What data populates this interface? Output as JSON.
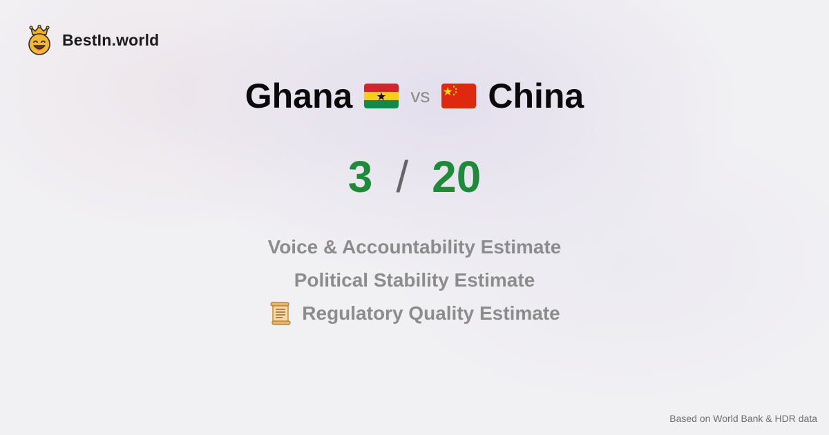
{
  "brand": {
    "logo_icon": "crowned-smiley-icon",
    "name": "BestIn.world"
  },
  "comparison": {
    "country_a": {
      "name": "Ghana",
      "flag_icon": "ghana-flag-icon"
    },
    "vs_label": "vs",
    "country_b": {
      "name": "China",
      "flag_icon": "china-flag-icon"
    }
  },
  "score": {
    "a": "3",
    "separator": "/",
    "b": "20",
    "color": "#1f8a3a"
  },
  "metrics": [
    {
      "label": "Voice & Accountability Estimate",
      "icon": ""
    },
    {
      "label": "Political Stability Estimate",
      "icon": ""
    },
    {
      "label": "Regulatory Quality Estimate",
      "icon": "scroll-icon"
    }
  ],
  "footer": {
    "source_note": "Based on World Bank & HDR data"
  }
}
